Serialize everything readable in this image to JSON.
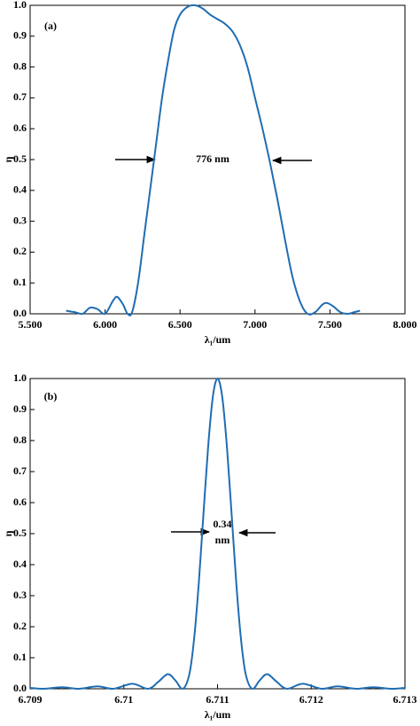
{
  "chart_data": [
    {
      "type": "line",
      "panel_label": "(a)",
      "annotation": [
        "776 nm"
      ],
      "x_label": "λ₁/um",
      "y_label": "η",
      "xlim": [
        5.5,
        8.0
      ],
      "ylim": [
        0,
        1
      ],
      "xticks": [
        {
          "value": 5.5,
          "label": "5.500"
        },
        {
          "value": 6.0,
          "label": "6.000"
        },
        {
          "value": 6.5,
          "label": "6.500"
        },
        {
          "value": 7.0,
          "label": "7.000"
        },
        {
          "value": 7.5,
          "label": "7.500"
        },
        {
          "value": 8.0,
          "label": "8.000"
        }
      ],
      "yticks": [
        {
          "value": 0,
          "label": "0.0"
        },
        0.1,
        0.2,
        0.3,
        0.4,
        0.5,
        0.6,
        0.7,
        0.8,
        0.9,
        {
          "value": 1,
          "label": "1.0"
        }
      ],
      "color": "#1f6db3",
      "x": [
        5.74,
        5.8,
        5.85,
        5.9,
        5.95,
        6.0,
        6.05,
        6.08,
        6.12,
        6.15,
        6.18,
        6.22,
        6.26,
        6.3,
        6.34,
        6.38,
        6.42,
        6.46,
        6.5,
        6.55,
        6.6,
        6.65,
        6.7,
        6.75,
        6.8,
        6.85,
        6.9,
        6.95,
        7.0,
        7.05,
        7.1,
        7.15,
        7.2,
        7.25,
        7.3,
        7.35,
        7.4,
        7.45,
        7.48,
        7.52,
        7.57,
        7.62,
        7.66,
        7.7
      ],
      "values": [
        0.01,
        0.005,
        0.0,
        0.02,
        0.015,
        0.0,
        0.04,
        0.055,
        0.03,
        0.0,
        0.005,
        0.1,
        0.25,
        0.4,
        0.55,
        0.7,
        0.82,
        0.92,
        0.97,
        0.995,
        1.0,
        0.99,
        0.97,
        0.955,
        0.94,
        0.915,
        0.87,
        0.8,
        0.7,
        0.6,
        0.49,
        0.37,
        0.24,
        0.12,
        0.04,
        0.0,
        0.005,
        0.03,
        0.035,
        0.025,
        0.005,
        0.0,
        0.005,
        0.01
      ]
    },
    {
      "type": "line",
      "panel_label": "(b)",
      "annotation": [
        "0.34",
        "nm"
      ],
      "x_label": "λ₁/um",
      "y_label": "η",
      "xlim": [
        6.709,
        6.713
      ],
      "ylim": [
        0,
        1
      ],
      "xticks": [
        6.709,
        6.71,
        6.711,
        6.712,
        6.713
      ],
      "yticks": [
        {
          "value": 0,
          "label": "0.0"
        },
        0.1,
        0.2,
        0.3,
        0.4,
        0.5,
        0.6,
        0.7,
        0.8,
        0.9,
        {
          "value": 1,
          "label": "1.0"
        }
      ],
      "color": "#1f6db3",
      "x": [
        6.709,
        6.70915,
        6.70934,
        6.70952,
        6.70972,
        6.70989,
        6.71009,
        6.71026,
        6.71037,
        6.71047,
        6.71055,
        6.71063,
        6.7107,
        6.71075,
        6.7108,
        6.71085,
        6.7109,
        6.71095,
        6.711,
        6.71105,
        6.7111,
        6.71115,
        6.7112,
        6.71125,
        6.7113,
        6.71137,
        6.71145,
        6.71153,
        6.71163,
        6.71174,
        6.71191,
        6.71211,
        6.71228,
        6.71248,
        6.71266,
        6.71285,
        6.713
      ],
      "values": [
        0.003,
        0.0,
        0.005,
        0.0,
        0.008,
        0.0,
        0.016,
        0.0,
        0.023,
        0.047,
        0.027,
        0.0,
        0.048,
        0.161,
        0.341,
        0.564,
        0.781,
        0.941,
        1.0,
        0.941,
        0.781,
        0.564,
        0.341,
        0.161,
        0.048,
        0.0,
        0.027,
        0.047,
        0.023,
        0.0,
        0.016,
        0.0,
        0.008,
        0.0,
        0.005,
        0.0,
        0.003
      ]
    }
  ]
}
